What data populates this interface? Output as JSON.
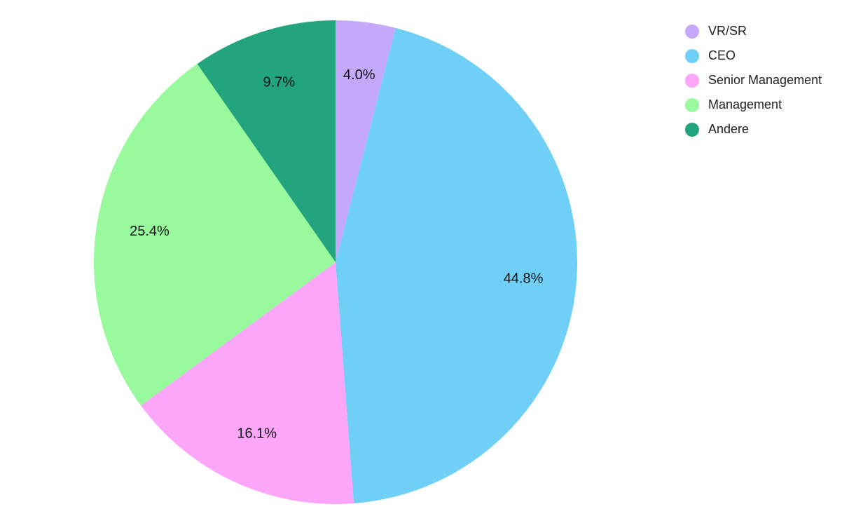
{
  "chart_data": {
    "type": "pie",
    "start_angle": "12 o'clock",
    "direction": "clockwise",
    "legend_position": "top-right",
    "slices": [
      {
        "name": "VR/SR",
        "value": 4.0,
        "label": "4.0%",
        "color": "#c4a9fb"
      },
      {
        "name": "CEO",
        "value": 44.8,
        "label": "44.8%",
        "color": "#6fcff7"
      },
      {
        "name": "Senior Management",
        "value": 16.1,
        "label": "16.1%",
        "color": "#fca6fa"
      },
      {
        "name": "Management",
        "value": 25.4,
        "label": "25.4%",
        "color": "#98f99d"
      },
      {
        "name": "Andere",
        "value": 9.7,
        "label": "9.7%",
        "color": "#22a47e"
      }
    ]
  }
}
